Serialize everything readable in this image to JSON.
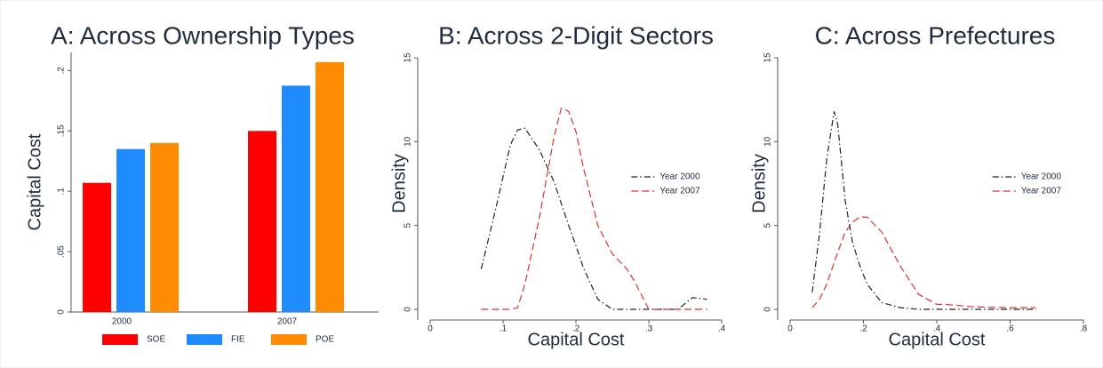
{
  "chart_data": [
    {
      "type": "bar",
      "title": "A: Across Ownership Types",
      "y_label": "Capital Cost",
      "categories": [
        "2000",
        "2007"
      ],
      "series": [
        {
          "name": "SOE",
          "color": "#ff0000",
          "values": [
            0.107,
            0.15
          ]
        },
        {
          "name": "FIE",
          "color": "#1e8cff",
          "values": [
            0.135,
            0.1875
          ]
        },
        {
          "name": "POE",
          "color": "#ff8c00",
          "values": [
            0.14,
            0.207
          ]
        }
      ],
      "ylim": [
        0,
        0.215
      ],
      "yticks": [
        0,
        {
          "value": 0.05,
          "label": ".05"
        },
        {
          "value": 0.1,
          "label": ".1"
        },
        {
          "value": 0.15,
          "label": ".15"
        },
        {
          "value": 0.2,
          "label": ".2"
        }
      ],
      "legend": "bottom"
    },
    {
      "type": "line",
      "title": "B: Across 2-Digit Sectors",
      "x_label": "Capital Cost",
      "y_label": "Density",
      "x": [
        0.07,
        0.09,
        0.11,
        0.12,
        0.13,
        0.15,
        0.17,
        0.18,
        0.19,
        0.2,
        0.21,
        0.23,
        0.25,
        0.27,
        0.28,
        0.3,
        0.34,
        0.36,
        0.38
      ],
      "series": [
        {
          "name": "Year 2000",
          "color": "#222222",
          "style": "dashdot",
          "values": [
            2.4,
            6,
            9.8,
            10.7,
            10.8,
            9.5,
            7.6,
            6.3,
            5,
            3.8,
            2.5,
            0.6,
            0,
            0,
            0,
            0,
            0,
            0.7,
            0.6
          ]
        },
        {
          "name": "Year 2007",
          "color": "#d9332b",
          "style": "dash",
          "values": [
            0,
            0,
            0,
            0.1,
            1.5,
            5.5,
            10.3,
            12,
            11.8,
            10.6,
            8.5,
            5,
            3.3,
            2.4,
            1.7,
            0,
            0,
            0,
            0
          ]
        }
      ],
      "xlim": [
        0,
        0.4
      ],
      "ylim": [
        0,
        15
      ],
      "xticks": [
        0,
        {
          "value": 0.1,
          "label": ".1"
        },
        {
          "value": 0.2,
          "label": ".2"
        },
        {
          "value": 0.3,
          "label": ".3"
        },
        {
          "value": 0.4,
          "label": ".4"
        }
      ],
      "yticks": [
        0,
        5,
        10,
        15
      ],
      "legend": "right"
    },
    {
      "type": "line",
      "title": "C: Across Prefectures",
      "x_label": "Capital Cost",
      "y_label": "Density",
      "x": [
        0.06,
        0.08,
        0.1,
        0.12,
        0.13,
        0.15,
        0.17,
        0.19,
        0.21,
        0.25,
        0.3,
        0.35,
        0.4,
        0.42,
        0.5,
        0.6,
        0.67
      ],
      "series": [
        {
          "name": "Year 2000",
          "color": "#222222",
          "style": "dashdot",
          "values": [
            1,
            4.5,
            9,
            11.8,
            11,
            6.5,
            4,
            2.6,
            1.5,
            0.4,
            0.1,
            0,
            0,
            0,
            0,
            0,
            0
          ]
        },
        {
          "name": "Year 2007",
          "color": "#d9332b",
          "style": "dash",
          "values": [
            0.1,
            0.6,
            1.5,
            2.8,
            3.4,
            4.6,
            5.2,
            5.5,
            5.5,
            4.6,
            2.6,
            0.9,
            0.3,
            0.3,
            0.15,
            0.1,
            0.1
          ]
        }
      ],
      "xlim": [
        0,
        0.8
      ],
      "ylim": [
        0,
        15
      ],
      "xticks": [
        0,
        {
          "value": 0.2,
          "label": ".2"
        },
        {
          "value": 0.4,
          "label": ".4"
        },
        {
          "value": 0.6,
          "label": ".6"
        },
        {
          "value": 0.8,
          "label": ".8"
        }
      ],
      "yticks": [
        0,
        5,
        10,
        15
      ],
      "legend": "right"
    }
  ]
}
